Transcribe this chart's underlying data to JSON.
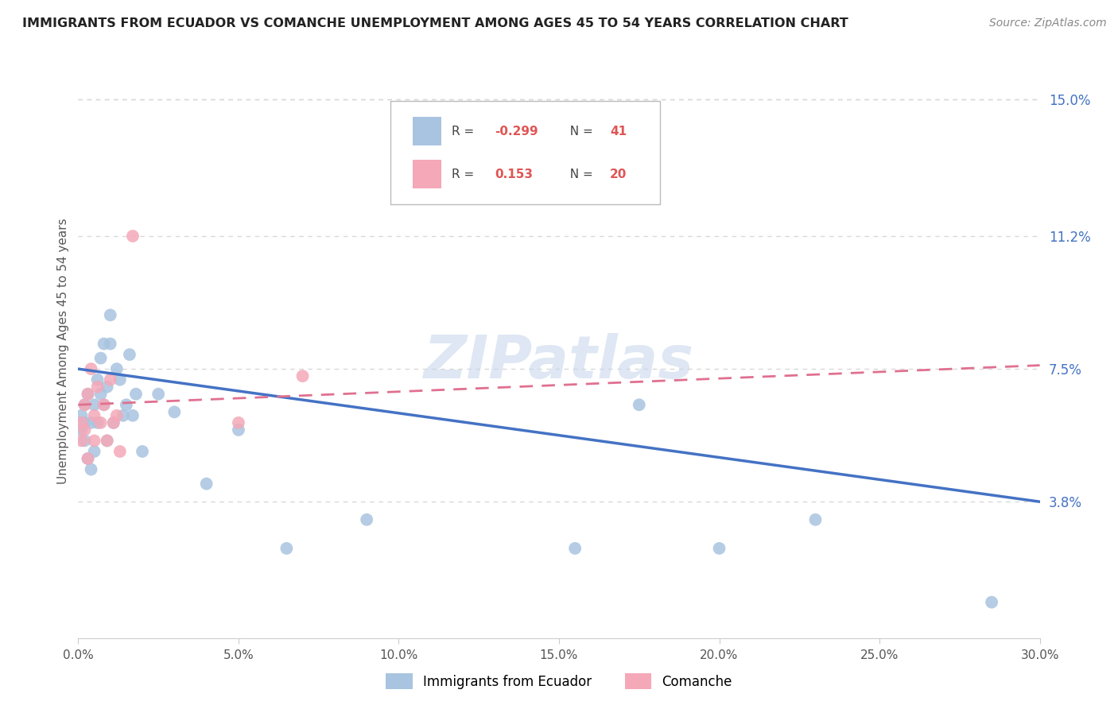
{
  "title": "IMMIGRANTS FROM ECUADOR VS COMANCHE UNEMPLOYMENT AMONG AGES 45 TO 54 YEARS CORRELATION CHART",
  "source": "Source: ZipAtlas.com",
  "ylabel": "Unemployment Among Ages 45 to 54 years",
  "xlim": [
    0.0,
    0.3
  ],
  "ylim": [
    0.0,
    0.16
  ],
  "xtick_labels": [
    "0.0%",
    "5.0%",
    "10.0%",
    "15.0%",
    "20.0%",
    "25.0%",
    "30.0%"
  ],
  "xtick_vals": [
    0.0,
    0.05,
    0.1,
    0.15,
    0.2,
    0.25,
    0.3
  ],
  "ytick_labels_right": [
    "3.8%",
    "7.5%",
    "11.2%",
    "15.0%"
  ],
  "ytick_vals_right": [
    0.038,
    0.075,
    0.112,
    0.15
  ],
  "blue_color": "#a8c4e0",
  "pink_color": "#f4a8b8",
  "blue_line_color": "#4472c4",
  "pink_line_color": "#e07090",
  "series1_label": "Immigrants from Ecuador",
  "series2_label": "Comanche",
  "blue_line_y0": 0.075,
  "blue_line_y1": 0.038,
  "pink_line_y0": 0.065,
  "pink_line_y1": 0.076,
  "blue_scatter_x": [
    0.001,
    0.001,
    0.002,
    0.002,
    0.002,
    0.003,
    0.003,
    0.004,
    0.004,
    0.005,
    0.005,
    0.006,
    0.006,
    0.007,
    0.007,
    0.008,
    0.008,
    0.009,
    0.009,
    0.01,
    0.01,
    0.011,
    0.012,
    0.013,
    0.014,
    0.015,
    0.016,
    0.017,
    0.018,
    0.02,
    0.025,
    0.03,
    0.04,
    0.05,
    0.065,
    0.09,
    0.155,
    0.175,
    0.2,
    0.23,
    0.285
  ],
  "blue_scatter_y": [
    0.062,
    0.058,
    0.065,
    0.06,
    0.055,
    0.068,
    0.05,
    0.06,
    0.047,
    0.065,
    0.052,
    0.072,
    0.06,
    0.078,
    0.068,
    0.082,
    0.065,
    0.07,
    0.055,
    0.082,
    0.09,
    0.06,
    0.075,
    0.072,
    0.062,
    0.065,
    0.079,
    0.062,
    0.068,
    0.052,
    0.068,
    0.063,
    0.043,
    0.058,
    0.025,
    0.033,
    0.025,
    0.065,
    0.025,
    0.033,
    0.01
  ],
  "pink_scatter_x": [
    0.001,
    0.001,
    0.002,
    0.002,
    0.003,
    0.003,
    0.004,
    0.005,
    0.005,
    0.006,
    0.007,
    0.008,
    0.009,
    0.01,
    0.011,
    0.012,
    0.013,
    0.017,
    0.05,
    0.07
  ],
  "pink_scatter_y": [
    0.06,
    0.055,
    0.065,
    0.058,
    0.068,
    0.05,
    0.075,
    0.062,
    0.055,
    0.07,
    0.06,
    0.065,
    0.055,
    0.072,
    0.06,
    0.062,
    0.052,
    0.112,
    0.06,
    0.073
  ],
  "watermark": "ZIPatlas",
  "background_color": "#ffffff",
  "grid_color": "#d8d8d8"
}
